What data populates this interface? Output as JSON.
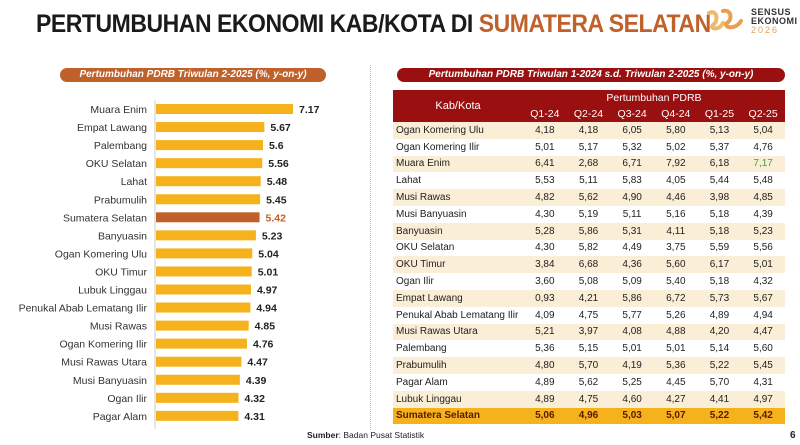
{
  "header": {
    "title_main": "PERTUMBUHAN EKONOMI KAB/KOTA DI ",
    "title_highlight": "SUMATERA SELATAN",
    "logo": {
      "line1": "SENSUS",
      "line2": "EKONOMI",
      "line3": "2026"
    }
  },
  "colors": {
    "bar": "#f5b21c",
    "highlight_bar": "#c0602a",
    "table_header": "#9a0f0f",
    "total_row": "#f5b21c",
    "stripe": "#fbeed6"
  },
  "chart_data": {
    "type": "bar",
    "orientation": "horizontal",
    "title": "Pertumbuhan PDRB Triwulan 2-2025 (%, y-on-y)",
    "categories": [
      "Muara Enim",
      "Empat Lawang",
      "Palembang",
      "OKU Selatan",
      "Lahat",
      "Prabumulih",
      "Sumatera Selatan",
      "Banyuasin",
      "Ogan Komering Ulu",
      "OKU Timur",
      "Lubuk Linggau",
      "Penukal Abab Lematang Ilir",
      "Musi Rawas",
      "Ogan Komering Ilir",
      "Musi Rawas Utara",
      "Musi Banyuasin",
      "Ogan Ilir",
      "Pagar Alam"
    ],
    "values": [
      7.17,
      5.67,
      5.6,
      5.56,
      5.48,
      5.45,
      5.42,
      5.23,
      5.04,
      5.01,
      4.97,
      4.94,
      4.85,
      4.76,
      4.47,
      4.39,
      4.32,
      4.31
    ],
    "labels": [
      "7.17",
      "5.67",
      "5.6",
      "5.56",
      "5.48",
      "5.45",
      "5.42",
      "5.23",
      "5.04",
      "5.01",
      "4.97",
      "4.94",
      "4.85",
      "4.76",
      "4.47",
      "4.39",
      "4.32",
      "4.31"
    ],
    "highlight": "Sumatera Selatan",
    "xlim": [
      0,
      7.5
    ]
  },
  "table": {
    "title": "Pertumbuhan PDRB Triwulan 1-2024 s.d. Triwulan 2-2025 (%, y-on-y)",
    "col_header": "Kab/Kota",
    "group_header": "Pertumbuhan PDRB",
    "columns": [
      "Q1-24",
      "Q2-24",
      "Q3-24",
      "Q4-24",
      "Q1-25",
      "Q2-25"
    ],
    "rows": [
      [
        "Ogan Komering Ulu",
        "4,18",
        "4,18",
        "6,05",
        "5,80",
        "5,13",
        "5,04"
      ],
      [
        "Ogan Komering Ilir",
        "5,01",
        "5,17",
        "5,32",
        "5,02",
        "5,37",
        "4,76"
      ],
      [
        "Muara Enim",
        "6,41",
        "2,68",
        "6,71",
        "7,92",
        "6,18",
        "7,17"
      ],
      [
        "Lahat",
        "5,53",
        "5,11",
        "5,83",
        "4,05",
        "5,44",
        "5,48"
      ],
      [
        "Musi Rawas",
        "4,82",
        "5,62",
        "4,90",
        "4,46",
        "3,98",
        "4,85"
      ],
      [
        "Musi Banyuasin",
        "4,30",
        "5,19",
        "5,11",
        "5,16",
        "5,18",
        "4,39"
      ],
      [
        "Banyuasin",
        "5,28",
        "5,86",
        "5,31",
        "4,11",
        "5,18",
        "5,23"
      ],
      [
        "OKU Selatan",
        "4,30",
        "5,82",
        "4,49",
        "3,75",
        "5,59",
        "5,56"
      ],
      [
        "OKU Timur",
        "3,84",
        "6,68",
        "4,36",
        "5,60",
        "6,17",
        "5,01"
      ],
      [
        "Ogan Ilir",
        "3,60",
        "5,08",
        "5,09",
        "5,40",
        "5,18",
        "4,32"
      ],
      [
        "Empat Lawang",
        "0,93",
        "4,21",
        "5,86",
        "6,72",
        "5,73",
        "5,67"
      ],
      [
        "Penukal Abab Lematang Ilir",
        "4,09",
        "4,75",
        "5,77",
        "5,26",
        "4,89",
        "4,94"
      ],
      [
        "Musi Rawas Utara",
        "5,21",
        "3,97",
        "4,08",
        "4,88",
        "4,20",
        "4,47"
      ],
      [
        "Palembang",
        "5,36",
        "5,15",
        "5,01",
        "5,01",
        "5,14",
        "5,60"
      ],
      [
        "Prabumulih",
        "4,80",
        "5,70",
        "4,19",
        "5,36",
        "5,22",
        "5,45"
      ],
      [
        "Pagar Alam",
        "4,89",
        "5,62",
        "5,25",
        "4,45",
        "5,70",
        "4,31"
      ],
      [
        "Lubuk Linggau",
        "4,89",
        "4,75",
        "4,60",
        "4,27",
        "4,41",
        "4,97"
      ]
    ],
    "total": [
      "Sumatera Selatan",
      "5,06",
      "4,96",
      "5,03",
      "5,07",
      "5,22",
      "5,42"
    ]
  },
  "footer": {
    "source_label": "Sumber",
    "source_text": ": Badan Pusat Statistik",
    "page": "6"
  }
}
